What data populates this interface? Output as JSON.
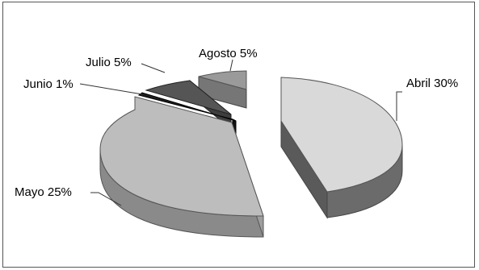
{
  "chart_data": {
    "type": "pie",
    "style": "3d-exploded",
    "title": "",
    "legend": "none",
    "slices": [
      {
        "label": "Abril 30%",
        "category": "Abril",
        "value": 30,
        "color": "#d9d9d9",
        "side_color": "#6b6b6b"
      },
      {
        "label": "Mayo 25%",
        "category": "Mayo",
        "value": 25,
        "color": "#bdbdbd",
        "side_color": "#8a8a8a"
      },
      {
        "label": "Junio 1%",
        "category": "Junio",
        "value": 1,
        "color": "#1e1e1e",
        "side_color": "#111111"
      },
      {
        "label": "Julio 5%",
        "category": "Julio",
        "value": 5,
        "color": "#555555",
        "side_color": "#3d3d3d"
      },
      {
        "label": "Agosto 5%",
        "category": "Agosto",
        "value": 5,
        "color": "#9a9a9a",
        "side_color": "#767676"
      }
    ]
  }
}
